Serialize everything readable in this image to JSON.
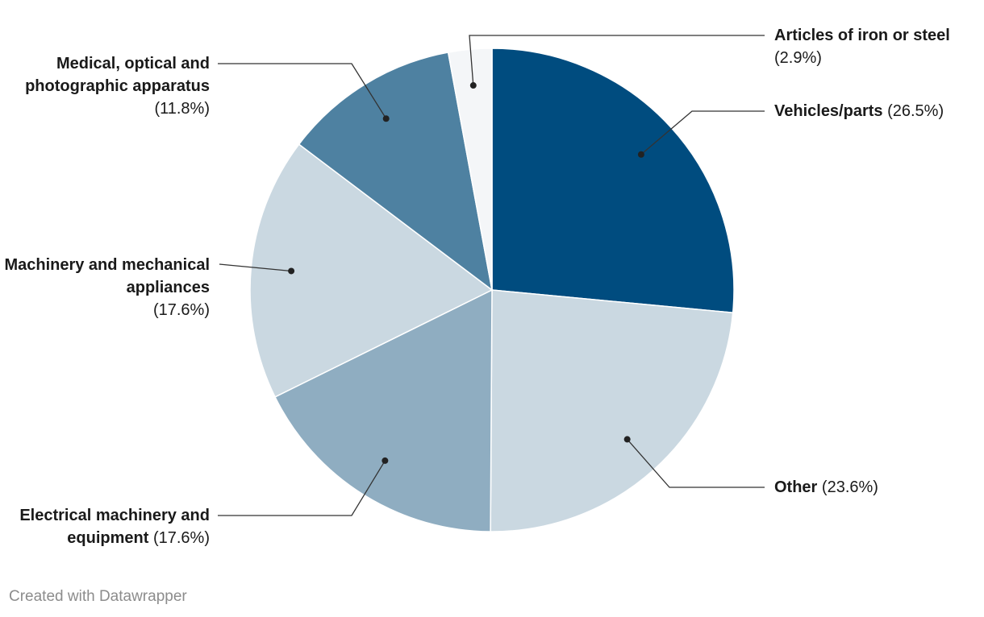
{
  "chart_data": {
    "type": "pie",
    "slices": [
      {
        "label": "Vehicles/parts",
        "value": 26.5,
        "value_label": "(26.5%)",
        "color": "#004c7f"
      },
      {
        "label": "Other",
        "value": 23.6,
        "value_label": "(23.6%)",
        "color": "#cad8e1"
      },
      {
        "label": "Electrical machinery and equipment",
        "value": 17.6,
        "value_label": "(17.6%)",
        "color": "#8fadc1"
      },
      {
        "label": "Machinery and mechanical appliances",
        "value": 17.6,
        "value_label": "(17.6%)",
        "color": "#cad8e1"
      },
      {
        "label": "Medical, optical and photographic apparatus",
        "value": 11.8,
        "value_label": "(11.8%)",
        "color": "#4e81a1"
      },
      {
        "label": "Articles of iron or steel",
        "value": 2.9,
        "value_label": "(2.9%)",
        "color": "#f4f6f8"
      }
    ]
  },
  "footer": {
    "credit": "Created with Datawrapper"
  }
}
